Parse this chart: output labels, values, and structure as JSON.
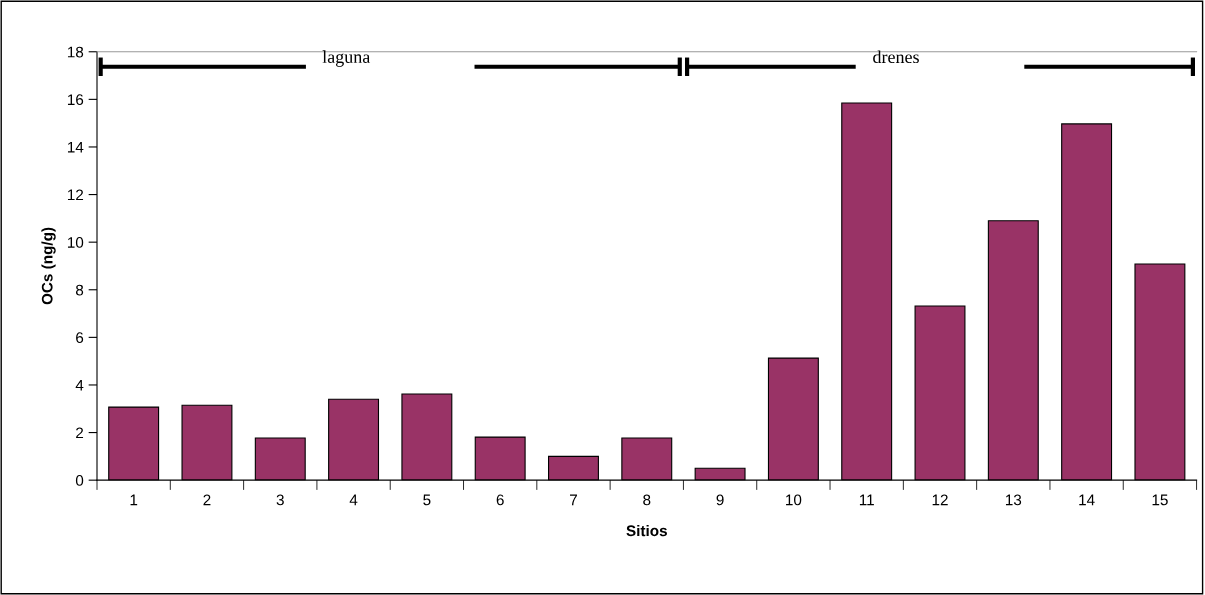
{
  "chart_data": {
    "type": "bar",
    "xlabel": "Sitios",
    "ylabel": "OCs (ng/g)",
    "categories": [
      "1",
      "2",
      "3",
      "4",
      "5",
      "6",
      "7",
      "8",
      "9",
      "10",
      "11",
      "12",
      "13",
      "14",
      "15"
    ],
    "values": [
      3.07,
      3.15,
      1.77,
      3.4,
      3.62,
      1.81,
      1.0,
      1.77,
      0.5,
      5.13,
      15.85,
      7.32,
      10.9,
      14.97,
      9.08
    ],
    "color": "#993366",
    "ylim": [
      0,
      18
    ],
    "yticks": [
      0,
      2,
      4,
      6,
      8,
      10,
      12,
      14,
      16,
      18
    ],
    "annotations": [
      "laguna",
      "drenes"
    ],
    "grid": false,
    "legend": false
  }
}
